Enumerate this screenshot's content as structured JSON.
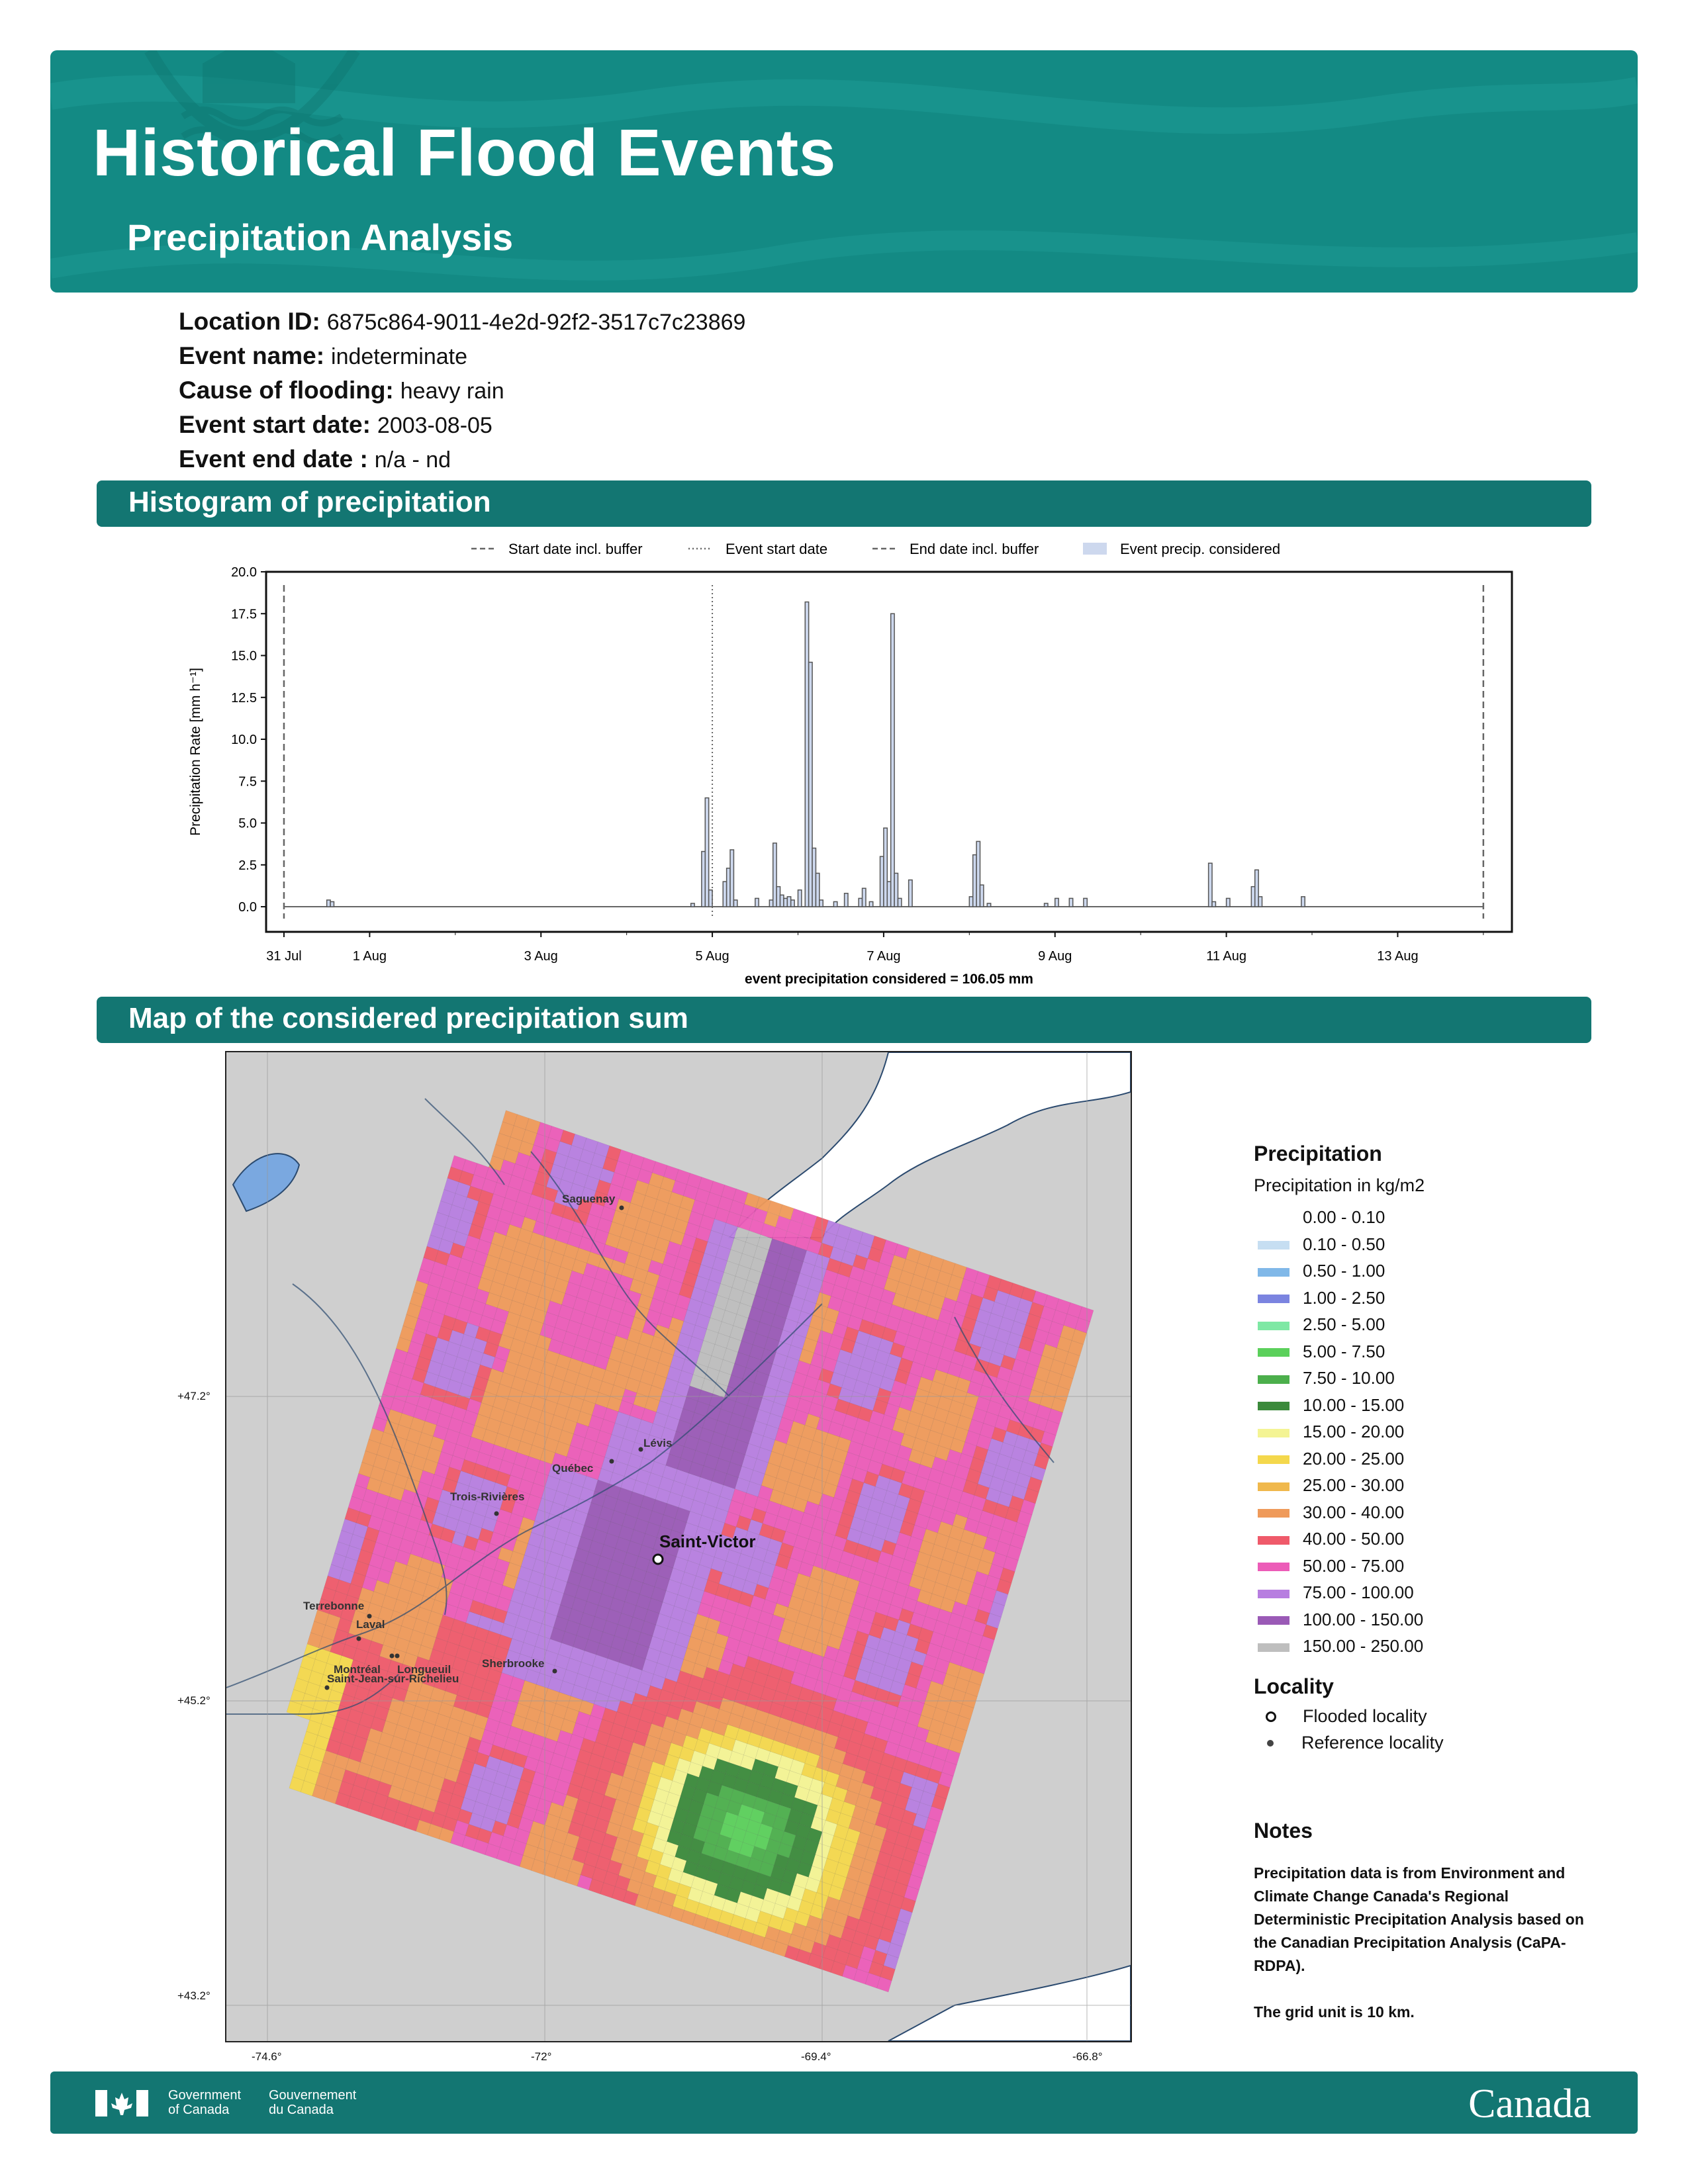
{
  "header": {
    "title": "Historical Flood Events",
    "subtitle": "Precipitation Analysis"
  },
  "info": [
    {
      "key": "Location ID:",
      "value": "6875c864-9011-4e2d-92f2-3517c7c23869"
    },
    {
      "key": "Event name:",
      "value": "indeterminate"
    },
    {
      "key": "Cause of flooding:",
      "value": "heavy rain"
    },
    {
      "key": "Event start date:",
      "value": "2003-08-05"
    },
    {
      "key": "Event end date :",
      "value": "n/a - nd"
    }
  ],
  "sections": {
    "histogram": "Histogram of precipitation",
    "map": "Map of the considered precipitation sum"
  },
  "chart_data": {
    "type": "bar",
    "ylabel": "Precipitation Rate [mm h⁻¹]",
    "xlabel": "event precipitation considered = 106.05 mm",
    "ylim": [
      -1.5,
      20
    ],
    "yticks": [
      "0.0",
      "2.5",
      "5.0",
      "7.5",
      "10.0",
      "12.5",
      "15.0",
      "17.5",
      "20.0"
    ],
    "xlim_days": [
      "30 Jul 19:00",
      "14 Aug 08:00"
    ],
    "xticks": [
      "31 Jul",
      "1 Aug",
      "3 Aug",
      "5 Aug",
      "7 Aug",
      "9 Aug",
      "11 Aug",
      "13 Aug"
    ],
    "legend": [
      "Start date incl. buffer",
      "Event start date",
      "End date incl. buffer",
      "Event precip. considered"
    ],
    "legend_position": "top",
    "markers": {
      "start_buffer": "31 Jul 00:00",
      "event_start": "5 Aug 00:00",
      "end_buffer": "14 Aug 00:00"
    },
    "series": [
      {
        "points": [
          [
            "31 Jul 12:00",
            0.4
          ],
          [
            "31 Jul 13:00",
            0.3
          ],
          [
            "4 Aug 18:00",
            0.2
          ],
          [
            "4 Aug 21:00",
            3.3
          ],
          [
            "4 Aug 22:00",
            6.5
          ],
          [
            "4 Aug 23:00",
            1.0
          ],
          [
            "5 Aug 03:00",
            1.5
          ],
          [
            "5 Aug 04:00",
            2.3
          ],
          [
            "5 Aug 05:00",
            3.4
          ],
          [
            "5 Aug 06:00",
            0.4
          ],
          [
            "5 Aug 12:00",
            0.5
          ],
          [
            "5 Aug 16:00",
            0.4
          ],
          [
            "5 Aug 17:00",
            3.8
          ],
          [
            "5 Aug 18:00",
            1.2
          ],
          [
            "5 Aug 19:00",
            0.7
          ],
          [
            "5 Aug 20:00",
            0.5
          ],
          [
            "5 Aug 21:00",
            0.6
          ],
          [
            "5 Aug 22:00",
            0.4
          ],
          [
            "6 Aug 00:00",
            1.0
          ],
          [
            "6 Aug 02:00",
            18.2
          ],
          [
            "6 Aug 03:00",
            14.6
          ],
          [
            "6 Aug 04:00",
            3.5
          ],
          [
            "6 Aug 05:00",
            2.0
          ],
          [
            "6 Aug 06:00",
            0.4
          ],
          [
            "6 Aug 10:00",
            0.3
          ],
          [
            "6 Aug 13:00",
            0.8
          ],
          [
            "6 Aug 17:00",
            0.5
          ],
          [
            "6 Aug 18:00",
            1.1
          ],
          [
            "6 Aug 20:00",
            0.3
          ],
          [
            "6 Aug 23:00",
            3.0
          ],
          [
            "6 Aug 24:00",
            4.7
          ],
          [
            "7 Aug 01:00",
            1.5
          ],
          [
            "7 Aug 02:00",
            17.5
          ],
          [
            "7 Aug 03:00",
            2.0
          ],
          [
            "7 Aug 04:00",
            0.5
          ],
          [
            "7 Aug 07:00",
            1.6
          ],
          [
            "8 Aug 00:00",
            0.6
          ],
          [
            "8 Aug 01:00",
            3.1
          ],
          [
            "8 Aug 02:00",
            3.9
          ],
          [
            "8 Aug 03:00",
            1.3
          ],
          [
            "8 Aug 05:00",
            0.2
          ],
          [
            "8 Aug 21:00",
            0.2
          ],
          [
            "9 Aug 00:00",
            0.5
          ],
          [
            "9 Aug 04:00",
            0.5
          ],
          [
            "9 Aug 08:00",
            0.5
          ],
          [
            "10 Aug 19:00",
            2.6
          ],
          [
            "10 Aug 20:00",
            0.3
          ],
          [
            "11 Aug 00:00",
            0.5
          ],
          [
            "11 Aug 07:00",
            1.2
          ],
          [
            "11 Aug 08:00",
            2.2
          ],
          [
            "11 Aug 09:00",
            0.6
          ],
          [
            "11 Aug 21:00",
            0.6
          ]
        ]
      }
    ]
  },
  "map": {
    "lon_labels": [
      "-74.6°",
      "-72°",
      "-69.4°",
      "-66.8°"
    ],
    "lat_labels": [
      "+47.2°",
      "+45.2°",
      "+43.2°"
    ],
    "cities": [
      {
        "name": "Saguenay"
      },
      {
        "name": "Lévis"
      },
      {
        "name": "Québec"
      },
      {
        "name": "Trois-Rivières"
      },
      {
        "name": "Saint-Victor"
      },
      {
        "name": "Terrebonne"
      },
      {
        "name": "Laval"
      },
      {
        "name": "Montréal"
      },
      {
        "name": "Longueuil"
      },
      {
        "name": "Sherbrooke"
      },
      {
        "name": "Saint-Jean-sur-Richelieu"
      }
    ]
  },
  "legend": {
    "title": "Precipitation",
    "subtitle": "Precipitation in kg/m2",
    "classes": [
      {
        "label": "0.00 - 0.10",
        "color": "#ffffff"
      },
      {
        "label": "0.10 - 0.50",
        "color": "#c6def2"
      },
      {
        "label": "0.50 - 1.00",
        "color": "#80b8e8"
      },
      {
        "label": "1.00 - 2.50",
        "color": "#7b84e0"
      },
      {
        "label": "2.50 - 5.00",
        "color": "#7ee8a4"
      },
      {
        "label": "5.00 - 7.50",
        "color": "#5bd05b"
      },
      {
        "label": "7.50 - 10.00",
        "color": "#4caf4c"
      },
      {
        "label": "10.00 - 15.00",
        "color": "#3b8a3b"
      },
      {
        "label": "15.00 - 20.00",
        "color": "#f4f494"
      },
      {
        "label": "20.00 - 25.00",
        "color": "#f4d84c"
      },
      {
        "label": "25.00 - 30.00",
        "color": "#f0b84c"
      },
      {
        "label": "30.00 - 40.00",
        "color": "#ef9a5a"
      },
      {
        "label": "40.00 - 50.00",
        "color": "#ef5a6a"
      },
      {
        "label": "50.00 - 75.00",
        "color": "#ec5cb8"
      },
      {
        "label": "75.00 - 100.00",
        "color": "#b77ee0"
      },
      {
        "label": "100.00 - 150.00",
        "color": "#9a5ab6"
      },
      {
        "label": "150.00 - 250.00",
        "color": "#bebebe"
      }
    ],
    "locality_title": "Locality",
    "locality": [
      {
        "label": "Flooded locality"
      },
      {
        "label": "Reference locality"
      }
    ]
  },
  "notes": {
    "title": "Notes",
    "text1": "Precipitation data is from Environment and Climate Change Canada's Regional Deterministic Precipitation Analysis based on the Canadian Precipitation Analysis (CaPA-RDPA).",
    "text2": "The grid unit is 10 km."
  },
  "footer": {
    "gov_en_1": "Government",
    "gov_en_2": "of Canada",
    "gov_fr_1": "Gouvernement",
    "gov_fr_2": "du Canada",
    "wordmark": "Canada"
  }
}
